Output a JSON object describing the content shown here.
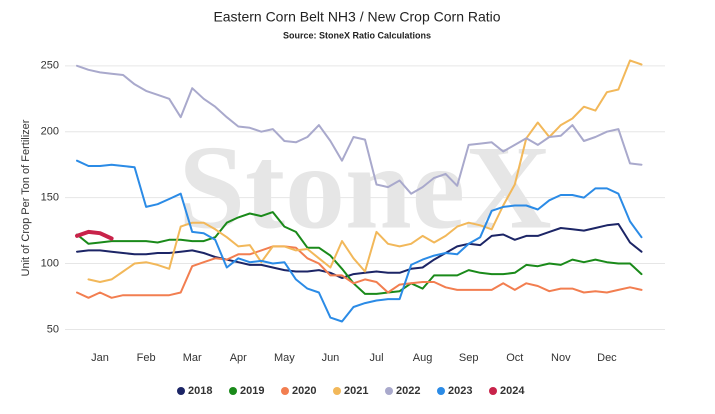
{
  "chart_data": {
    "type": "line",
    "title": "Eastern Corn Belt NH3 / New Crop Corn Ratio",
    "subtitle": "Source: StoneX Ratio Calculations",
    "watermark": "StoneX",
    "y_label": "Unit of Crop Per Ton of Fertilizer",
    "categories": [
      null,
      null,
      "Jan",
      null,
      null,
      null,
      "Feb",
      null,
      null,
      null,
      "Mar",
      null,
      null,
      null,
      "Apr",
      null,
      null,
      null,
      "May",
      null,
      null,
      null,
      "Jun",
      null,
      null,
      null,
      "Jul",
      null,
      null,
      null,
      "Aug",
      null,
      null,
      null,
      "Sep",
      null,
      null,
      null,
      "Oct",
      null,
      null,
      null,
      "Nov",
      null,
      null,
      null,
      "Dec",
      null,
      null,
      null
    ],
    "ylim": [
      42,
      262
    ],
    "yticks": [
      50,
      100,
      150,
      200,
      250
    ],
    "grid": true,
    "series": [
      {
        "name": "2018",
        "color": "#1c2566",
        "values": [
          109,
          110,
          110,
          109,
          108,
          107,
          107,
          108,
          108,
          109,
          110,
          108,
          105,
          103,
          101,
          99,
          99,
          97,
          95,
          94,
          94,
          95,
          93,
          89,
          92,
          93,
          94,
          93,
          93,
          96,
          97,
          103,
          108,
          113,
          115,
          114,
          121,
          122,
          118,
          121,
          121,
          124,
          127,
          126,
          125,
          127,
          129,
          130,
          116,
          109
        ]
      },
      {
        "name": "2019",
        "color": "#1a8a1a",
        "values": [
          122,
          115,
          116,
          117,
          117,
          117,
          117,
          116,
          118,
          118,
          117,
          117,
          120,
          131,
          135,
          138,
          136,
          139,
          128,
          124,
          112,
          112,
          106,
          96,
          85,
          77,
          77,
          78,
          79,
          85,
          81,
          91,
          91,
          91,
          95,
          93,
          92,
          92,
          93,
          99,
          98,
          100,
          99,
          103,
          101,
          103,
          101,
          100,
          100,
          92
        ]
      },
      {
        "name": "2020",
        "color": "#f27e50",
        "values": [
          78,
          74,
          78,
          74,
          76,
          76,
          76,
          76,
          76,
          78,
          98,
          101,
          104,
          103,
          107,
          107,
          110,
          113,
          113,
          112,
          104,
          100,
          91,
          91,
          85,
          88,
          86,
          78,
          84,
          85,
          86,
          86,
          82,
          80,
          80,
          80,
          80,
          85,
          80,
          85,
          83,
          79,
          81,
          81,
          78,
          79,
          78,
          80,
          82,
          80
        ]
      },
      {
        "name": "2021",
        "color": "#f2b85a",
        "values": [
          null,
          88,
          86,
          88,
          94,
          100,
          101,
          99,
          96,
          128,
          131,
          131,
          126,
          120,
          113,
          114,
          101,
          113,
          113,
          110,
          111,
          104,
          97,
          117,
          104,
          94,
          124,
          115,
          113,
          115,
          121,
          116,
          121,
          128,
          131,
          129,
          126,
          144,
          160,
          195,
          207,
          196,
          205,
          210,
          219,
          216,
          230,
          232,
          254,
          251
        ]
      },
      {
        "name": "2022",
        "color": "#a9a9cc",
        "values": [
          250,
          247,
          245,
          244,
          243,
          236,
          231,
          228,
          225,
          211,
          233,
          225,
          219,
          211,
          204,
          203,
          200,
          202,
          193,
          192,
          196,
          205,
          193,
          178,
          196,
          194,
          160,
          158,
          163,
          153,
          158,
          165,
          168,
          159,
          190,
          191,
          192,
          185,
          190,
          195,
          190,
          196,
          197,
          205,
          193,
          196,
          200,
          202,
          176,
          175
        ]
      },
      {
        "name": "2023",
        "color": "#2b8be6",
        "values": [
          178,
          174,
          174,
          175,
          174,
          173,
          143,
          145,
          149,
          153,
          124,
          123,
          118,
          97,
          104,
          101,
          102,
          100,
          101,
          88,
          81,
          78,
          59,
          56,
          67,
          70,
          72,
          73,
          73,
          99,
          103,
          106,
          108,
          107,
          115,
          120,
          140,
          143,
          144,
          144,
          141,
          148,
          152,
          152,
          150,
          157,
          157,
          153,
          132,
          120
        ]
      },
      {
        "name": "2024",
        "color": "#c8234a",
        "values": [
          121,
          124,
          123,
          119,
          null,
          null,
          null,
          null,
          null,
          null,
          null,
          null,
          null,
          null,
          null,
          null,
          null,
          null,
          null,
          null,
          null,
          null,
          null,
          null,
          null,
          null,
          null,
          null,
          null,
          null,
          null,
          null,
          null,
          null,
          null,
          null,
          null,
          null,
          null,
          null,
          null,
          null,
          null,
          null,
          null,
          null,
          null,
          null,
          null,
          null
        ]
      }
    ]
  }
}
